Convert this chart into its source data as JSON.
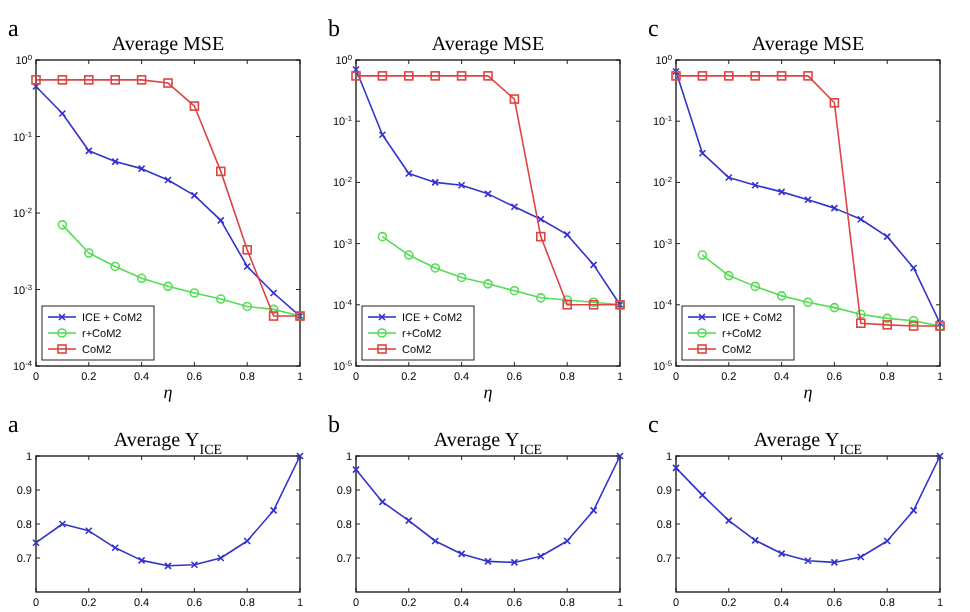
{
  "chart_data": [
    {
      "type": "line",
      "annotations": [
        "a"
      ],
      "title": "Average MSE",
      "xlabel": "η",
      "log": "y",
      "legend": "bottom left",
      "xlim": [
        0,
        1
      ],
      "xticks": [
        0,
        0.2,
        0.4,
        0.6,
        0.8,
        1
      ],
      "ylim": [
        0.0001,
        1
      ],
      "yticks": [
        {
          "value": 1,
          "label": "10$^{0}$"
        },
        {
          "value": 0.1,
          "label": "10$^{-1}$"
        },
        {
          "value": 0.01,
          "label": "10$^{-2}$"
        },
        {
          "value": 0.001,
          "label": "10$^{-3}$"
        },
        {
          "value": 0.0001,
          "label": "10$^{-4}$"
        }
      ],
      "x": [
        0,
        0.1,
        0.2,
        0.3,
        0.4,
        0.5,
        0.6,
        0.7,
        0.8,
        0.9,
        1
      ],
      "series": [
        {
          "name": "ICE + CoM2",
          "color": "#3333cc",
          "marker": "cross",
          "values": [
            0.45,
            0.2,
            0.065,
            0.047,
            0.038,
            0.027,
            0.017,
            0.008,
            0.002,
            0.0009,
            0.00045
          ]
        },
        {
          "name": "r+CoM2",
          "color": "#55dd55",
          "marker": "circle",
          "values": [
            null,
            0.007,
            0.003,
            0.002,
            0.0014,
            0.0011,
            0.0009,
            0.00075,
            0.0006,
            0.00055,
            0.00045
          ]
        },
        {
          "name": "CoM2",
          "color": "#dd4444",
          "marker": "square",
          "values": [
            0.55,
            0.55,
            0.55,
            0.55,
            0.55,
            0.5,
            0.25,
            0.035,
            0.0033,
            0.00045,
            0.00045
          ]
        }
      ]
    },
    {
      "type": "line",
      "annotations": [
        "b"
      ],
      "title": "Average MSE",
      "xlabel": "η",
      "log": "y",
      "legend": "bottom left",
      "xlim": [
        0,
        1
      ],
      "xticks": [
        0,
        0.2,
        0.4,
        0.6,
        0.8,
        1
      ],
      "ylim": [
        1e-05,
        1
      ],
      "yticks": [
        {
          "value": 1,
          "label": "10$^{0}$"
        },
        {
          "value": 0.1,
          "label": "10$^{-1}$"
        },
        {
          "value": 0.01,
          "label": "10$^{-2}$"
        },
        {
          "value": 0.001,
          "label": "10$^{-3}$"
        },
        {
          "value": 0.0001,
          "label": "10$^{-4}$"
        },
        {
          "value": 1e-05,
          "label": "10$^{-5}$"
        }
      ],
      "x": [
        0,
        0.1,
        0.2,
        0.3,
        0.4,
        0.5,
        0.6,
        0.7,
        0.8,
        0.9,
        1
      ],
      "series": [
        {
          "name": "ICE + CoM2",
          "color": "#3333cc",
          "marker": "cross",
          "values": [
            0.7,
            0.06,
            0.014,
            0.01,
            0.009,
            0.0065,
            0.004,
            0.0025,
            0.0014,
            0.00045,
            0.0001
          ]
        },
        {
          "name": "r+CoM2",
          "color": "#55dd55",
          "marker": "circle",
          "values": [
            null,
            0.0013,
            0.00065,
            0.0004,
            0.00028,
            0.00022,
            0.00017,
            0.00013,
            0.00012,
            0.00011,
            0.0001
          ]
        },
        {
          "name": "CoM2",
          "color": "#dd4444",
          "marker": "square",
          "values": [
            0.55,
            0.55,
            0.55,
            0.55,
            0.55,
            0.55,
            0.23,
            0.0013,
            0.0001,
            0.0001,
            0.0001
          ]
        }
      ]
    },
    {
      "type": "line",
      "annotations": [
        "c"
      ],
      "title": "Average MSE",
      "xlabel": "η",
      "log": "y",
      "legend": "bottom left",
      "xlim": [
        0,
        1
      ],
      "xticks": [
        0,
        0.2,
        0.4,
        0.6,
        0.8,
        1
      ],
      "ylim": [
        1e-05,
        1
      ],
      "yticks": [
        {
          "value": 1,
          "label": "10$^{0}$"
        },
        {
          "value": 0.1,
          "label": "10$^{-1}$"
        },
        {
          "value": 0.01,
          "label": "10$^{-2}$"
        },
        {
          "value": 0.001,
          "label": "10$^{-3}$"
        },
        {
          "value": 0.0001,
          "label": "10$^{-4}$"
        },
        {
          "value": 1e-05,
          "label": "10$^{-5}$"
        }
      ],
      "x": [
        0,
        0.1,
        0.2,
        0.3,
        0.4,
        0.5,
        0.6,
        0.7,
        0.8,
        0.9,
        1
      ],
      "series": [
        {
          "name": "ICE + CoM2",
          "color": "#3333cc",
          "marker": "cross",
          "values": [
            0.65,
            0.03,
            0.012,
            0.009,
            0.007,
            0.0052,
            0.0038,
            0.0025,
            0.0013,
            0.0004,
            5e-05
          ]
        },
        {
          "name": "r+CoM2",
          "color": "#55dd55",
          "marker": "circle",
          "values": [
            null,
            0.00065,
            0.0003,
            0.0002,
            0.00014,
            0.00011,
            9e-05,
            7e-05,
            6e-05,
            5.5e-05,
            4.5e-05
          ]
        },
        {
          "name": "CoM2",
          "color": "#dd4444",
          "marker": "square",
          "values": [
            0.55,
            0.55,
            0.55,
            0.55,
            0.55,
            0.55,
            0.2,
            5e-05,
            4.7e-05,
            4.5e-05,
            4.5e-05
          ]
        }
      ]
    },
    {
      "type": "line",
      "annotations": [
        "a"
      ],
      "title": "Average Υ$_{ICE}$",
      "xlim": [
        0,
        1
      ],
      "xticks": [
        0,
        0.2,
        0.4,
        0.6,
        0.8,
        1
      ],
      "ylim": [
        0.6,
        1
      ],
      "yticks": [
        0.7,
        0.8,
        0.9,
        1
      ],
      "x": [
        0,
        0.1,
        0.2,
        0.3,
        0.4,
        0.5,
        0.6,
        0.7,
        0.8,
        0.9,
        1
      ],
      "series": [
        {
          "color": "#3333cc",
          "marker": "cross",
          "values": [
            0.745,
            0.8,
            0.78,
            0.73,
            0.693,
            0.677,
            0.68,
            0.7,
            0.75,
            0.84,
            1
          ]
        }
      ]
    },
    {
      "type": "line",
      "annotations": [
        "b"
      ],
      "title": "Average Υ$_{ICE}$",
      "xlim": [
        0,
        1
      ],
      "xticks": [
        0,
        0.2,
        0.4,
        0.6,
        0.8,
        1
      ],
      "ylim": [
        0.6,
        1
      ],
      "yticks": [
        0.7,
        0.8,
        0.9,
        1
      ],
      "x": [
        0,
        0.1,
        0.2,
        0.3,
        0.4,
        0.5,
        0.6,
        0.7,
        0.8,
        0.9,
        1
      ],
      "series": [
        {
          "color": "#3333cc",
          "marker": "cross",
          "values": [
            0.96,
            0.865,
            0.81,
            0.75,
            0.712,
            0.69,
            0.687,
            0.705,
            0.75,
            0.84,
            1
          ]
        }
      ]
    },
    {
      "type": "line",
      "annotations": [
        "c"
      ],
      "title": "Average Υ$_{ICE}$",
      "xlim": [
        0,
        1
      ],
      "xticks": [
        0,
        0.2,
        0.4,
        0.6,
        0.8,
        1
      ],
      "ylim": [
        0.6,
        1
      ],
      "yticks": [
        0.7,
        0.8,
        0.9,
        1
      ],
      "x": [
        0,
        0.1,
        0.2,
        0.3,
        0.4,
        0.5,
        0.6,
        0.7,
        0.8,
        0.9,
        1
      ],
      "series": [
        {
          "color": "#3333cc",
          "marker": "cross",
          "values": [
            0.965,
            0.885,
            0.81,
            0.752,
            0.713,
            0.692,
            0.687,
            0.703,
            0.75,
            0.84,
            1
          ]
        }
      ]
    }
  ]
}
